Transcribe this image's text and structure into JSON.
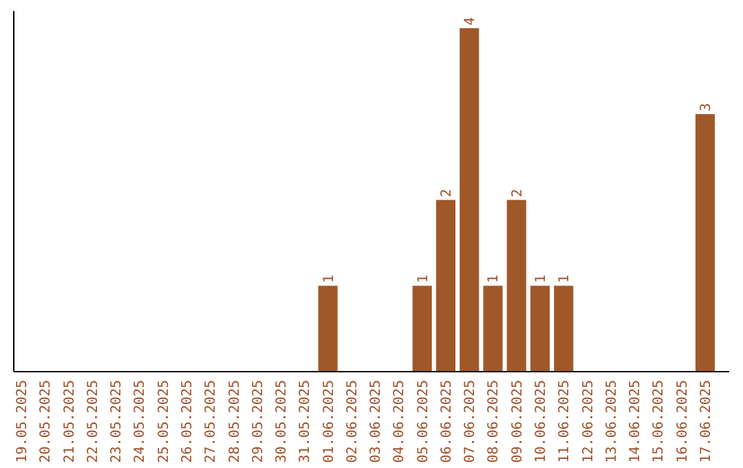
{
  "chart_data": {
    "type": "bar",
    "categories": [
      "19.05.2025",
      "20.05.2025",
      "21.05.2025",
      "22.05.2025",
      "23.05.2025",
      "24.05.2025",
      "25.05.2025",
      "26.05.2025",
      "27.05.2025",
      "28.05.2025",
      "29.05.2025",
      "30.05.2025",
      "31.05.2025",
      "01.06.2025",
      "02.06.2025",
      "03.06.2025",
      "04.06.2025",
      "05.06.2025",
      "06.06.2025",
      "07.06.2025",
      "08.06.2025",
      "09.06.2025",
      "10.06.2025",
      "11.06.2025",
      "12.06.2025",
      "13.06.2025",
      "14.06.2025",
      "15.06.2025",
      "16.06.2025",
      "17.06.2025"
    ],
    "values": [
      null,
      null,
      null,
      null,
      null,
      null,
      null,
      null,
      null,
      null,
      null,
      null,
      null,
      1,
      null,
      null,
      null,
      1,
      2,
      4,
      1,
      2,
      1,
      1,
      null,
      null,
      null,
      null,
      null,
      3
    ],
    "value_labels": [
      null,
      null,
      null,
      null,
      null,
      null,
      null,
      null,
      null,
      null,
      null,
      null,
      null,
      "1",
      null,
      null,
      null,
      "1",
      "2",
      "4",
      "1",
      "2",
      "1",
      "1",
      null,
      null,
      null,
      null,
      null,
      "3"
    ],
    "color": "#a0582a",
    "ylim": [
      0,
      4.2
    ],
    "tick_labels": "x"
  }
}
